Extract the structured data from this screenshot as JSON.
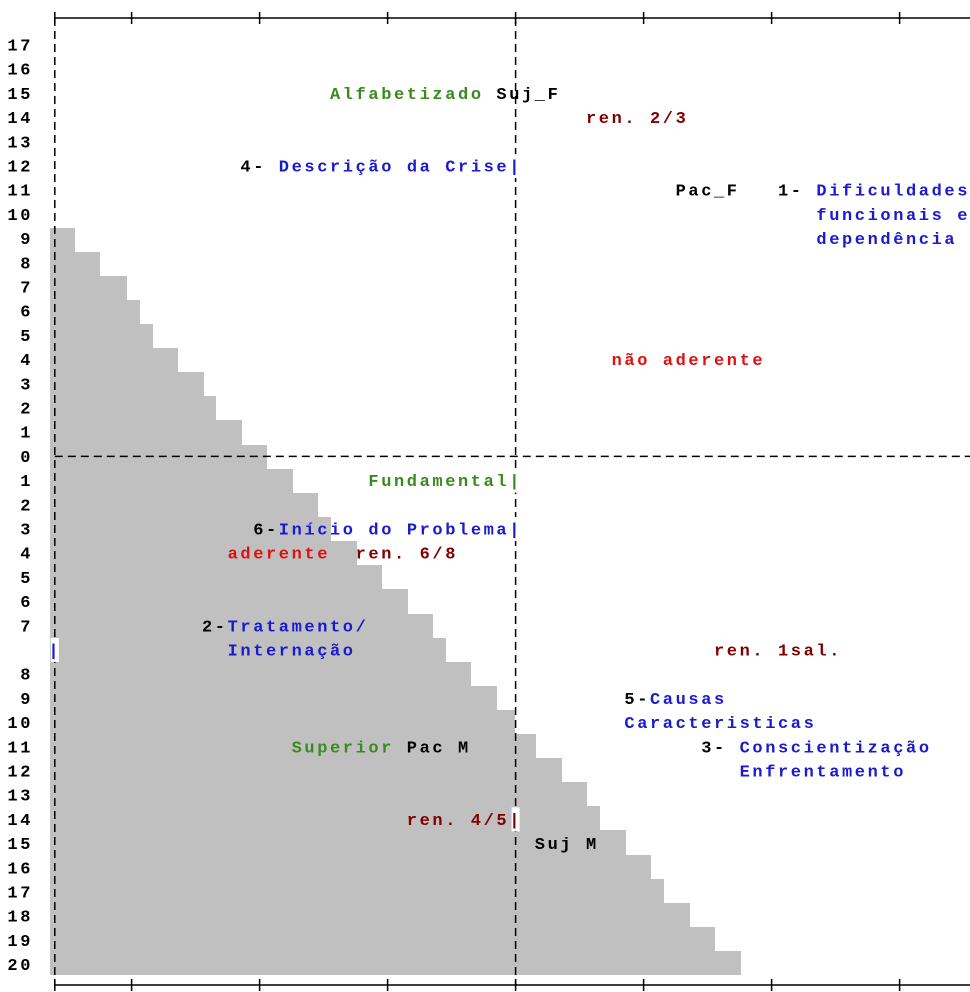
{
  "row_labels": [
    "17",
    "16",
    "15",
    "14",
    "13",
    "12",
    "11",
    "10",
    "9",
    "8",
    "7",
    "6",
    "5",
    "4",
    "3",
    "2",
    "1",
    "0",
    "1",
    "2",
    "3",
    "4",
    "5",
    "6",
    "7",
    "8",
    "9",
    "10",
    "11",
    "12",
    "13",
    "14",
    "15",
    "16",
    "17",
    "18",
    "19",
    "20"
  ],
  "labels": [
    {
      "text": "Alfabetizado",
      "color": "#3a8a1e"
    },
    {
      "text": "Suj_F",
      "color": "#000000"
    },
    {
      "text": "ren. 2/3",
      "color": "#800000"
    },
    {
      "text": "4-",
      "color": "#000000"
    },
    {
      "text": "Descrição da Crise|",
      "color": "#1a1ad0"
    },
    {
      "text": "Pac_F",
      "color": "#000000"
    },
    {
      "text": "1-",
      "color": "#000000"
    },
    {
      "text": "Dificuldades",
      "color": "#1a1ad0"
    },
    {
      "text": "funcionais e",
      "color": "#1a1ad0"
    },
    {
      "text": "dependência",
      "color": "#1a1ad0"
    },
    {
      "text": "não aderente",
      "color": "#e01010"
    },
    {
      "text": "Fundamental|",
      "color": "#3a8a1e"
    },
    {
      "text": "6-",
      "color": "#000000"
    },
    {
      "text": "Início do Problema|",
      "color": "#1a1ad0"
    },
    {
      "text": "aderente",
      "color": "#e01010"
    },
    {
      "text": "ren. 6/8",
      "color": "#800000"
    },
    {
      "text": "2-",
      "color": "#000000"
    },
    {
      "text": "Tratamento/",
      "color": "#1a1ad0"
    },
    {
      "text": "|",
      "color": "#1a1ad0"
    },
    {
      "text": "Internação",
      "color": "#1a1ad0"
    },
    {
      "text": "ren. 1sal.",
      "color": "#800000"
    },
    {
      "text": "5-",
      "color": "#000000"
    },
    {
      "text": "Causas",
      "color": "#1a1ad0"
    },
    {
      "text": "Caracteristicas",
      "color": "#1a1ad0"
    },
    {
      "text": "Superior",
      "color": "#3a8a1e"
    },
    {
      "text": "Pac M",
      "color": "#000000"
    },
    {
      "text": "3-",
      "color": "#000000"
    },
    {
      "text": "Conscientização",
      "color": "#1a1ad0"
    },
    {
      "text": "Enfrentamento",
      "color": "#1a1ad0"
    },
    {
      "text": "ren. 4/5|",
      "color": "#800000"
    },
    {
      "text": "Suj M",
      "color": "#000000"
    }
  ]
}
